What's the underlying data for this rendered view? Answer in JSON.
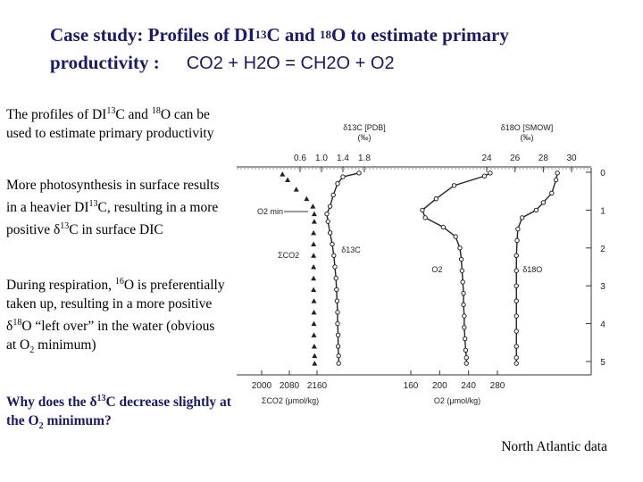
{
  "title": {
    "line1_pre": "Case study: Profiles of DI",
    "line1_sup1": "13",
    "line1_mid": "C and ",
    "line1_sup2": "18",
    "line1_post": "O to estimate primary",
    "line2_pre": "productivity :",
    "line2_eq": "CO2 + H2O = CH2O + O2"
  },
  "paragraphs": {
    "p1_a": "The profiles of DI",
    "p1_sup": "13",
    "p1_b": "C and ",
    "p1_sup2": "18",
    "p1_c": "O can be used to estimate primary productivity",
    "p2_a": "More photosynthesis in surface results in a heavier DI",
    "p2_sup": "13",
    "p2_b": "C, resulting in a more positive δ",
    "p2_sup2": "13",
    "p2_c": "C in surface DIC",
    "p3_a": "During respiration, ",
    "p3_sup": "16",
    "p3_b": "O is preferentially taken up, resulting in a more positive δ",
    "p3_sup2": "18",
    "p3_c": "O “left over” in the water (obvious at O",
    "p3_sub": "2",
    "p3_d": " minimum)"
  },
  "question": {
    "a": "Why does the δ",
    "sup": "13",
    "b": "C decrease slightly at the O",
    "sub": "2",
    "c": " minimum?"
  },
  "note": "North Atlantic data",
  "chart_data": {
    "type": "line",
    "title": "",
    "depth_axis": {
      "label": "",
      "ticks": [
        "0",
        "1",
        "2",
        "3",
        "4",
        "5"
      ],
      "range": [
        0,
        5.3
      ]
    },
    "top_axes": [
      {
        "label": "δ13C [PDB]",
        "unit": "(‰)",
        "ticks": [
          "0.6",
          "1.0",
          "1.4",
          "1.8"
        ]
      },
      {
        "label": "δ18O [SMOW]",
        "unit": "(‰)",
        "ticks": [
          "24",
          "26",
          "28",
          "30"
        ]
      }
    ],
    "bottom_axes": [
      {
        "label": "ΣCO2 (μmol/kg)",
        "ticks": [
          "2000",
          "2080",
          "2160"
        ]
      },
      {
        "label": "O2 (μmol/kg)",
        "ticks": [
          "160",
          "200",
          "240",
          "280"
        ]
      }
    ],
    "annotations": [
      "O2 min"
    ],
    "series": [
      {
        "name": "ΣCO2",
        "axis": "ΣCO2 (μmol/kg)",
        "points": [
          [
            2060,
            0.05
          ],
          [
            2075,
            0.2
          ],
          [
            2100,
            0.45
          ],
          [
            2130,
            0.7
          ],
          [
            2148,
            0.9
          ],
          [
            2152,
            1.1
          ],
          [
            2152,
            1.3
          ],
          [
            2150,
            1.6
          ],
          [
            2150,
            1.9
          ],
          [
            2150,
            2.2
          ],
          [
            2150,
            2.5
          ],
          [
            2150,
            2.8
          ],
          [
            2150,
            3.1
          ],
          [
            2151,
            3.4
          ],
          [
            2151,
            3.7
          ],
          [
            2151,
            4.0
          ],
          [
            2151,
            4.3
          ],
          [
            2152,
            4.6
          ],
          [
            2153,
            4.85
          ],
          [
            2153,
            5.05
          ]
        ]
      },
      {
        "name": "δ13C",
        "axis": "δ13C [PDB]",
        "points": [
          [
            1.7,
            0.02
          ],
          [
            1.4,
            0.12
          ],
          [
            1.3,
            0.3
          ],
          [
            1.22,
            0.6
          ],
          [
            1.16,
            0.9
          ],
          [
            1.1,
            1.1
          ],
          [
            1.12,
            1.3
          ],
          [
            1.16,
            1.6
          ],
          [
            1.2,
            1.9
          ],
          [
            1.23,
            2.2
          ],
          [
            1.25,
            2.5
          ],
          [
            1.27,
            2.8
          ],
          [
            1.28,
            3.1
          ],
          [
            1.29,
            3.4
          ],
          [
            1.3,
            3.7
          ],
          [
            1.3,
            4.0
          ],
          [
            1.31,
            4.3
          ],
          [
            1.31,
            4.6
          ],
          [
            1.32,
            4.85
          ],
          [
            1.32,
            5.05
          ]
        ]
      },
      {
        "name": "O2",
        "axis": "O2 (μmol/kg)",
        "points": [
          [
            270,
            0.02
          ],
          [
            262,
            0.1
          ],
          [
            220,
            0.35
          ],
          [
            195,
            0.7
          ],
          [
            176,
            1.0
          ],
          [
            180,
            1.2
          ],
          [
            205,
            1.45
          ],
          [
            222,
            1.7
          ],
          [
            228,
            2.0
          ],
          [
            230,
            2.3
          ],
          [
            231,
            2.6
          ],
          [
            232,
            2.9
          ],
          [
            233,
            3.2
          ],
          [
            233,
            3.5
          ],
          [
            234,
            3.8
          ],
          [
            234,
            4.1
          ],
          [
            235,
            4.4
          ],
          [
            236,
            4.7
          ],
          [
            237,
            4.9
          ],
          [
            237,
            5.05
          ]
        ]
      },
      {
        "name": "δ18O",
        "axis": "δ18O [SMOW]",
        "points": [
          [
            29.0,
            0.02
          ],
          [
            28.9,
            0.2
          ],
          [
            28.6,
            0.55
          ],
          [
            28.0,
            0.8
          ],
          [
            27.5,
            1.0
          ],
          [
            26.5,
            1.2
          ],
          [
            26.2,
            1.5
          ],
          [
            26.15,
            1.8
          ],
          [
            26.1,
            2.2
          ],
          [
            26.1,
            2.6
          ],
          [
            26.1,
            3.0
          ],
          [
            26.1,
            3.4
          ],
          [
            26.1,
            3.8
          ],
          [
            26.1,
            4.2
          ],
          [
            26.1,
            4.6
          ],
          [
            26.1,
            4.9
          ],
          [
            26.1,
            5.05
          ]
        ]
      }
    ]
  }
}
